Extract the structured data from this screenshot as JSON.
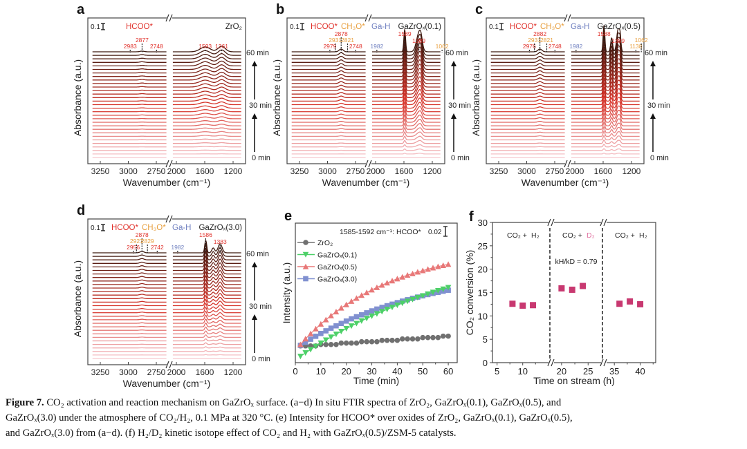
{
  "colors": {
    "hcoo": "#e0302a",
    "ch3o": "#e8a040",
    "gah": "#7080c0",
    "marker_f": "#c83870",
    "zro2": "#707070",
    "g01": "#4dd068",
    "g05": "#e87878",
    "g30": "#8090d0"
  },
  "chart_data": [
    {
      "type": "line",
      "panel": "a",
      "title": "ZrO₂",
      "xlabel": "Wavenumber (cm⁻¹)",
      "ylabel": "Absorbance (a.u.)",
      "xticks_left": [
        "3250",
        "3000",
        "2750"
      ],
      "xticks_right": [
        "2000",
        "1600",
        "1200"
      ],
      "scale_bar": "0.1",
      "time_labels": [
        "60 min",
        "30 min",
        "0 min"
      ],
      "species": [
        {
          "text": "HCOO*",
          "color": "hcoo"
        }
      ],
      "peak_labels": [
        {
          "wn": 2983,
          "text": "2983",
          "color": "hcoo"
        },
        {
          "wn": 2877,
          "text": "2877",
          "color": "hcoo"
        },
        {
          "wn": 2748,
          "text": "2748",
          "color": "hcoo"
        },
        {
          "wn": 1593,
          "text": "1593",
          "color": "hcoo"
        },
        {
          "wn": 1361,
          "text": "1361",
          "color": "hcoo"
        }
      ],
      "peaks": [
        [
          1593,
          0.07,
          70
        ],
        [
          1361,
          0.08,
          50
        ],
        [
          2877,
          0.01,
          20
        ]
      ],
      "traces": 31
    },
    {
      "type": "line",
      "panel": "b",
      "title": "GaZrOₓ(0.1)",
      "xlabel": "Wavenumber (cm⁻¹)",
      "ylabel": "Absorbance (a.u.)",
      "xticks_left": [
        "3250",
        "3000",
        "2750"
      ],
      "xticks_right": [
        "2000",
        "1600",
        "1200"
      ],
      "scale_bar": "0.1",
      "time_labels": [
        "60 min",
        "30 min",
        "0 min"
      ],
      "species": [
        {
          "text": "HCOO*",
          "color": "hcoo"
        },
        {
          "text": "CH₃O*",
          "color": "ch3o"
        },
        {
          "text": "Ga-H",
          "color": "gah"
        }
      ],
      "peak_labels": [
        {
          "wn": 2979,
          "text": "2979",
          "color": "hcoo"
        },
        {
          "wn": 2931,
          "text": "2931",
          "color": "ch3o"
        },
        {
          "wn": 2878,
          "text": "2878",
          "color": "hcoo"
        },
        {
          "wn": 2821,
          "text": "2821",
          "color": "ch3o"
        },
        {
          "wn": 2748,
          "text": "2748",
          "color": "hcoo"
        },
        {
          "wn": 1982,
          "text": "1982",
          "color": "gah"
        },
        {
          "wn": 1589,
          "text": "1589",
          "color": "hcoo"
        },
        {
          "wn": 1389,
          "text": "1389",
          "color": "hcoo"
        },
        {
          "wn": 1062,
          "text": "1062",
          "color": "ch3o"
        }
      ],
      "peaks": [
        [
          1589,
          0.32,
          12
        ],
        [
          1389,
          0.26,
          35
        ],
        [
          1360,
          0.1,
          20
        ],
        [
          2878,
          0.04,
          18
        ]
      ],
      "traces": 31
    },
    {
      "type": "line",
      "panel": "c",
      "title": "GaZrOₓ(0.5)",
      "xlabel": "Wavenumber (cm⁻¹)",
      "ylabel": "Absorbance (a.u.)",
      "xticks_left": [
        "3250",
        "3000",
        "2750"
      ],
      "xticks_right": [
        "2000",
        "1600",
        "1200"
      ],
      "scale_bar": "0.1",
      "time_labels": [
        "60 min",
        "30 min",
        "0 min"
      ],
      "species": [
        {
          "text": "HCOO*",
          "color": "hcoo"
        },
        {
          "text": "CH₃O*",
          "color": "ch3o"
        },
        {
          "text": "Ga-H",
          "color": "gah"
        }
      ],
      "peak_labels": [
        {
          "wn": 2976,
          "text": "2976",
          "color": "hcoo"
        },
        {
          "wn": 2931,
          "text": "2931",
          "color": "ch3o"
        },
        {
          "wn": 2882,
          "text": "2882",
          "color": "hcoo"
        },
        {
          "wn": 2821,
          "text": "2821",
          "color": "ch3o"
        },
        {
          "wn": 2748,
          "text": "2748",
          "color": "hcoo"
        },
        {
          "wn": 1982,
          "text": "1982",
          "color": "gah"
        },
        {
          "wn": 1588,
          "text": "1588",
          "color": "hcoo"
        },
        {
          "wn": 1389,
          "text": "1389",
          "color": "hcoo"
        },
        {
          "wn": 1138,
          "text": "1138",
          "color": "ch3o"
        },
        {
          "wn": 1062,
          "text": "1062",
          "color": "ch3o"
        }
      ],
      "peaks": [
        [
          1588,
          0.38,
          12
        ],
        [
          1480,
          0.2,
          14
        ],
        [
          1389,
          0.32,
          20
        ],
        [
          1360,
          0.18,
          12
        ],
        [
          2882,
          0.04,
          18
        ]
      ],
      "traces": 31
    },
    {
      "type": "line",
      "panel": "d",
      "title": "GaZrOₓ(3.0)",
      "xlabel": "Wavenumber (cm⁻¹)",
      "ylabel": "Absorbance (a.u.)",
      "xticks_left": [
        "3250",
        "3000",
        "2750"
      ],
      "xticks_right": [
        "2000",
        "1600",
        "1200"
      ],
      "scale_bar": "0.1",
      "time_labels": [
        "60 min",
        "30 min",
        "0 min"
      ],
      "species": [
        {
          "text": "HCOO*",
          "color": "hcoo"
        },
        {
          "text": "CH₃O*",
          "color": "ch3o"
        },
        {
          "text": "Ga-H",
          "color": "gah"
        }
      ],
      "peak_labels": [
        {
          "wn": 2956,
          "text": "2956",
          "color": "hcoo"
        },
        {
          "wn": 2927,
          "text": "2927",
          "color": "ch3o"
        },
        {
          "wn": 2878,
          "text": "2878",
          "color": "hcoo"
        },
        {
          "wn": 2829,
          "text": "2829",
          "color": "ch3o"
        },
        {
          "wn": 2742,
          "text": "2742",
          "color": "hcoo"
        },
        {
          "wn": 1982,
          "text": "1982",
          "color": "gah"
        },
        {
          "wn": 1586,
          "text": "1586",
          "color": "hcoo"
        },
        {
          "wn": 1383,
          "text": "1383",
          "color": "hcoo"
        }
      ],
      "peaks": [
        [
          1586,
          0.18,
          14
        ],
        [
          1480,
          0.07,
          20
        ],
        [
          1383,
          0.13,
          28
        ],
        [
          2878,
          0.02,
          18
        ]
      ],
      "traces": 31
    },
    {
      "type": "scatter",
      "panel": "e",
      "xlabel": "Time (min)",
      "ylabel": "Intensity (a.u.)",
      "annotation": "1585-1592 cm⁻¹: HCOO*",
      "scale_bar": "0.02",
      "xlim": [
        0,
        63.5
      ],
      "ylim": [
        0,
        1
      ],
      "xticks": [
        "0",
        "10",
        "20",
        "30",
        "40",
        "50",
        "60"
      ],
      "x": [
        2,
        4,
        6,
        8,
        10,
        12,
        14,
        16,
        18,
        20,
        22,
        24,
        26,
        28,
        30,
        32,
        34,
        36,
        38,
        40,
        42,
        44,
        46,
        48,
        50,
        52,
        54,
        56,
        58,
        60
      ],
      "series": [
        {
          "name": "ZrO₂",
          "color": "zro2",
          "marker": "circle",
          "values": [
            0.12,
            0.12,
            0.12,
            0.12,
            0.13,
            0.13,
            0.13,
            0.13,
            0.14,
            0.14,
            0.14,
            0.14,
            0.15,
            0.15,
            0.15,
            0.15,
            0.16,
            0.16,
            0.16,
            0.16,
            0.17,
            0.17,
            0.17,
            0.17,
            0.18,
            0.18,
            0.18,
            0.18,
            0.19,
            0.19
          ]
        },
        {
          "name": "GaZrOₓ(0.1)",
          "color": "g01",
          "marker": "triangle-down",
          "values": [
            0.045,
            0.07,
            0.094,
            0.117,
            0.14,
            0.162,
            0.183,
            0.204,
            0.224,
            0.244,
            0.263,
            0.281,
            0.299,
            0.317,
            0.334,
            0.35,
            0.366,
            0.382,
            0.397,
            0.412,
            0.426,
            0.44,
            0.453,
            0.467,
            0.479,
            0.492,
            0.504,
            0.516,
            0.527,
            0.538
          ]
        },
        {
          "name": "GaZrOₓ(0.5)",
          "color": "g05",
          "marker": "triangle-up",
          "values": [
            0.13,
            0.171,
            0.208,
            0.243,
            0.277,
            0.308,
            0.337,
            0.365,
            0.392,
            0.416,
            0.44,
            0.462,
            0.483,
            0.503,
            0.522,
            0.539,
            0.556,
            0.572,
            0.587,
            0.601,
            0.614,
            0.627,
            0.638,
            0.65,
            0.66,
            0.67,
            0.68,
            0.689,
            0.697,
            0.705
          ]
        },
        {
          "name": "GaZrOₓ(3.0)",
          "color": "g30",
          "marker": "square",
          "values": [
            0.124,
            0.146,
            0.168,
            0.189,
            0.209,
            0.228,
            0.247,
            0.264,
            0.281,
            0.298,
            0.314,
            0.329,
            0.343,
            0.357,
            0.371,
            0.384,
            0.396,
            0.408,
            0.419,
            0.43,
            0.441,
            0.451,
            0.461,
            0.47,
            0.479,
            0.488,
            0.496,
            0.504,
            0.512,
            0.519
          ]
        }
      ]
    },
    {
      "type": "scatter",
      "panel": "f",
      "xlabel": "Time on stream (h)",
      "ylabel": "CO₂ conversion (%)",
      "ylim": [
        0,
        30
      ],
      "yticks": [
        "0",
        "5",
        "10",
        "15",
        "20",
        "25",
        "30"
      ],
      "xticks": [
        {
          "v": 5,
          "t": "5"
        },
        {
          "v": 10,
          "t": "10"
        },
        {
          "v": 20,
          "t": "20"
        },
        {
          "v": 25,
          "t": "25"
        },
        {
          "v": 35,
          "t": "35"
        },
        {
          "v": 40,
          "t": "40"
        }
      ],
      "regions": [
        {
          "a": "CO₂ + ",
          "b": "H₂",
          "bcolor": "#333333"
        },
        {
          "a": "CO₂ + ",
          "b": "D₂",
          "bcolor": "#e070a0"
        },
        {
          "a": "CO₂ + ",
          "b": "H₂",
          "bcolor": "#333333"
        }
      ],
      "annotation": "kH/kD = 0.79",
      "points": [
        {
          "x": 8,
          "y": 12.6
        },
        {
          "x": 10,
          "y": 12.2
        },
        {
          "x": 12,
          "y": 12.3
        },
        {
          "x": 20,
          "y": 15.9
        },
        {
          "x": 22,
          "y": 15.6
        },
        {
          "x": 24,
          "y": 16.4
        },
        {
          "x": 36,
          "y": 12.6
        },
        {
          "x": 38,
          "y": 13.1
        },
        {
          "x": 40,
          "y": 12.5
        }
      ]
    }
  ],
  "caption": {
    "label": "Figure 7.",
    "line1": " CO₂ activation and reaction mechanism on GaZrOₓ surface. (a−d) In situ FTIR spectra of ZrO₂, GaZrOₓ(0.1), GaZrOₓ(0.5), and",
    "line2": "GaZrOₓ(3.0) under the atmosphere of CO₂/H₂, 0.1 MPa at 320 °C. (e) Intensity for HCOO* over oxides of ZrO₂, GaZrOₓ(0.1), GaZrOₓ(0.5),",
    "line3": "and GaZrOₓ(3.0) from (a−d). (f) H₂/D₂ kinetic isotope effect of CO₂ and H₂ with GaZrOₓ(0.5)/ZSM-5 catalysts."
  }
}
